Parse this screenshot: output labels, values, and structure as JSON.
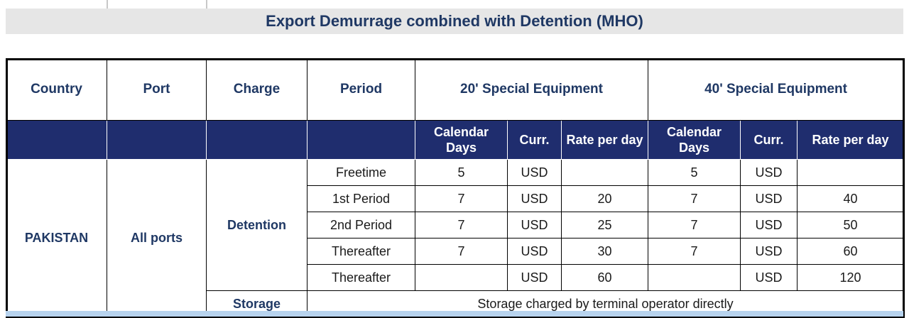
{
  "title": "Export Demurrage combined with Detention (MHO)",
  "headers": {
    "country": "Country",
    "port": "Port",
    "charge": "Charge",
    "period": "Period",
    "equip20": "20' Special Equipment",
    "equip40": "40' Special Equipment"
  },
  "subheaders": {
    "calendar_days": "Calendar Days",
    "curr": "Curr.",
    "rate_per_day": "Rate per day"
  },
  "country": "PAKISTAN",
  "port": "All ports",
  "charges": {
    "detention": "Detention",
    "storage": "Storage"
  },
  "rows": [
    {
      "period": "Freetime",
      "days20": "5",
      "curr20": "USD",
      "rate20": "",
      "days40": "5",
      "curr40": "USD",
      "rate40": ""
    },
    {
      "period": "1st Period",
      "days20": "7",
      "curr20": "USD",
      "rate20": "20",
      "days40": "7",
      "curr40": "USD",
      "rate40": "40"
    },
    {
      "period": "2nd Period",
      "days20": "7",
      "curr20": "USD",
      "rate20": "25",
      "days40": "7",
      "curr40": "USD",
      "rate40": "50"
    },
    {
      "period": "Thereafter",
      "days20": "7",
      "curr20": "USD",
      "rate20": "30",
      "days40": "7",
      "curr40": "USD",
      "rate40": "60"
    },
    {
      "period": "Thereafter",
      "days20": "",
      "curr20": "USD",
      "rate20": "60",
      "days40": "",
      "curr40": "USD",
      "rate40": "120"
    }
  ],
  "storage_note": "Storage charged by terminal operator directly",
  "colors": {
    "title_text": "#1f3864",
    "subheader_bg": "#1f2d6e",
    "title_bg": "#e6e6e6",
    "bottom_band": "#b7d3ee"
  }
}
